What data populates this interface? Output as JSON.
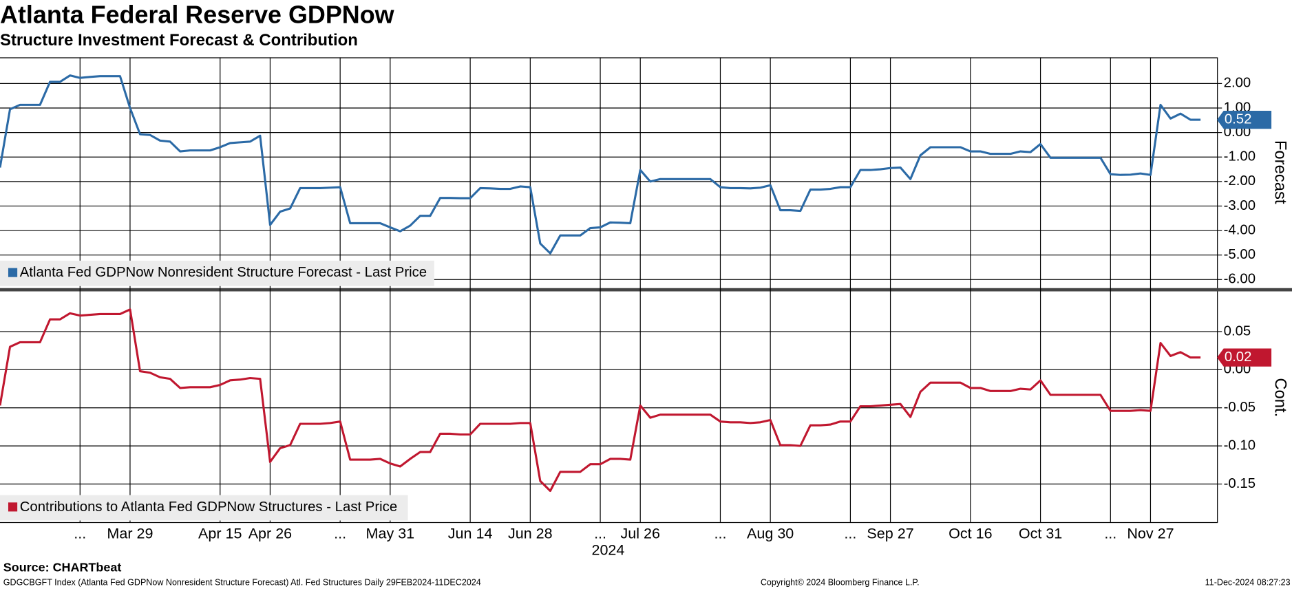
{
  "chart_data": [
    {
      "type": "line",
      "title": "Atlanta Federal Reserve GDPNow",
      "subtitle": "Structure Investment Forecast & Contribution",
      "ylabel": "Forecast",
      "ylim": [
        -6.3,
        3
      ],
      "yticks": [
        {
          "value": 2,
          "label": "2.00"
        },
        {
          "value": 1,
          "label": "1.00"
        },
        {
          "value": 0,
          "label": "0.00"
        },
        {
          "value": -1,
          "label": "-1.00"
        },
        {
          "value": -2,
          "label": "-2.00"
        },
        {
          "value": -3,
          "label": "-3.00"
        },
        {
          "value": -4,
          "label": "-4.00"
        },
        {
          "value": -5,
          "label": "-5.00"
        },
        {
          "value": -6,
          "label": "-6.00"
        }
      ],
      "grid": true,
      "series": [
        {
          "name": "Atlanta Fed GDPNow Nonresident Structure Forecast - Last Price",
          "color": "#2b6aa6",
          "values": [
            -1.43,
            0.95,
            1.13,
            1.13,
            1.13,
            2.07,
            2.07,
            2.33,
            2.23,
            2.27,
            2.3,
            2.3,
            2.3,
            1.0,
            -0.07,
            -0.1,
            -0.33,
            -0.37,
            -0.77,
            -0.73,
            -0.73,
            -0.73,
            -0.6,
            -0.43,
            -0.4,
            -0.37,
            -0.13,
            -3.77,
            -3.23,
            -3.1,
            -2.27,
            -2.27,
            -2.27,
            -2.25,
            -2.23,
            -3.7,
            -3.7,
            -3.7,
            -3.7,
            -3.87,
            -4.03,
            -3.8,
            -3.4,
            -3.4,
            -2.67,
            -2.67,
            -2.68,
            -2.68,
            -2.27,
            -2.28,
            -2.3,
            -2.3,
            -2.2,
            -2.23,
            -4.53,
            -4.93,
            -4.2,
            -4.2,
            -4.2,
            -3.9,
            -3.87,
            -3.67,
            -3.68,
            -3.7,
            -1.53,
            -2.0,
            -1.9,
            -1.9,
            -1.9,
            -1.9,
            -1.9,
            -1.9,
            -2.23,
            -2.27,
            -2.27,
            -2.28,
            -2.25,
            -2.15,
            -3.17,
            -3.17,
            -3.2,
            -2.33,
            -2.33,
            -2.3,
            -2.23,
            -2.23,
            -1.53,
            -1.53,
            -1.5,
            -1.45,
            -1.43,
            -1.9,
            -0.93,
            -0.6,
            -0.6,
            -0.6,
            -0.6,
            -0.77,
            -0.77,
            -0.87,
            -0.87,
            -0.87,
            -0.77,
            -0.8,
            -0.47,
            -1.03,
            -1.03,
            -1.03,
            -1.03,
            -1.03,
            -1.03,
            -1.7,
            -1.73,
            -1.72,
            -1.67,
            -1.73,
            1.13,
            0.57,
            0.77,
            0.52,
            0.52
          ]
        }
      ]
    },
    {
      "type": "line",
      "categories": [
        null,
        null,
        null,
        null,
        null,
        null,
        null,
        null,
        "...",
        null,
        null,
        null,
        null,
        "Mar 29",
        null,
        null,
        null,
        null,
        null,
        null,
        null,
        null,
        "Apr 15",
        null,
        null,
        null,
        null,
        "Apr 26",
        null,
        null,
        null,
        null,
        null,
        null,
        "...",
        null,
        null,
        null,
        null,
        "May 31",
        null,
        null,
        null,
        null,
        null,
        null,
        null,
        "Jun 14",
        null,
        null,
        null,
        null,
        null,
        "Jun 28",
        null,
        null,
        null,
        null,
        null,
        null,
        "...",
        null,
        null,
        null,
        "Jul 26",
        null,
        null,
        null,
        null,
        null,
        null,
        null,
        "...",
        null,
        null,
        null,
        null,
        "Aug 30",
        null,
        null,
        null,
        null,
        null,
        null,
        null,
        "...",
        null,
        null,
        null,
        "Sep 27",
        null,
        null,
        null,
        null,
        null,
        null,
        null,
        "Oct 16",
        null,
        null,
        null,
        null,
        null,
        null,
        "Oct 31",
        null,
        null,
        null,
        null,
        null,
        null,
        "...",
        null,
        null,
        null,
        "Nov 27",
        null,
        null,
        null,
        null,
        null
      ],
      "xlabel": "2024",
      "ylabel": "Cont.",
      "ylim": [
        -0.2,
        0.1
      ],
      "yticks": [
        {
          "value": 0.05,
          "label": "0.05"
        },
        {
          "value": 0,
          "label": "0.00"
        },
        {
          "value": -0.05,
          "label": "-0.05"
        },
        {
          "value": -0.1,
          "label": "-0.10"
        },
        {
          "value": -0.15,
          "label": "-0.15"
        }
      ],
      "grid": true,
      "series": [
        {
          "name": "Contributions to Atlanta Fed GDPNow Structures - Last Price",
          "color": "#c0172f",
          "values": [
            -0.047,
            0.03,
            0.036,
            0.036,
            0.036,
            0.066,
            0.066,
            0.074,
            0.071,
            0.072,
            0.073,
            0.073,
            0.073,
            0.079,
            -0.002,
            -0.004,
            -0.01,
            -0.012,
            -0.024,
            -0.023,
            -0.023,
            -0.023,
            -0.02,
            -0.014,
            -0.013,
            -0.011,
            -0.012,
            -0.121,
            -0.103,
            -0.099,
            -0.071,
            -0.071,
            -0.071,
            -0.07,
            -0.068,
            -0.118,
            -0.118,
            -0.118,
            -0.117,
            -0.123,
            -0.127,
            -0.117,
            -0.108,
            -0.108,
            -0.084,
            -0.084,
            -0.085,
            -0.085,
            -0.071,
            -0.071,
            -0.071,
            -0.071,
            -0.07,
            -0.07,
            -0.146,
            -0.159,
            -0.134,
            -0.134,
            -0.134,
            -0.124,
            -0.124,
            -0.117,
            -0.117,
            -0.118,
            -0.047,
            -0.063,
            -0.059,
            -0.059,
            -0.059,
            -0.059,
            -0.059,
            -0.059,
            -0.068,
            -0.069,
            -0.069,
            -0.07,
            -0.069,
            -0.066,
            -0.099,
            -0.099,
            -0.1,
            -0.073,
            -0.073,
            -0.072,
            -0.068,
            -0.068,
            -0.048,
            -0.048,
            -0.047,
            -0.046,
            -0.045,
            -0.062,
            -0.029,
            -0.017,
            -0.017,
            -0.017,
            -0.017,
            -0.024,
            -0.024,
            -0.028,
            -0.028,
            -0.028,
            -0.025,
            -0.026,
            -0.014,
            -0.033,
            -0.033,
            -0.033,
            -0.033,
            -0.033,
            -0.033,
            -0.054,
            -0.054,
            -0.054,
            -0.053,
            -0.054,
            0.035,
            0.018,
            0.023,
            0.016,
            0.016
          ],
          "value_labels": [
            null,
            null,
            null,
            null,
            null,
            null,
            null,
            null,
            null,
            null,
            null,
            null,
            null,
            null,
            null,
            null,
            null,
            null,
            null,
            null,
            null,
            null,
            null,
            null,
            null,
            null,
            null,
            null,
            null,
            null,
            null,
            null,
            null,
            null,
            null,
            null,
            null,
            null,
            null,
            null,
            null,
            null,
            null,
            null,
            null,
            null,
            null,
            null,
            null,
            null,
            null,
            null,
            null,
            null,
            null,
            null,
            null,
            null,
            null,
            null,
            null,
            null,
            null,
            null,
            null,
            null,
            null,
            null,
            null,
            null,
            null,
            null,
            null,
            null,
            null,
            null,
            null,
            null,
            null,
            null,
            null,
            null,
            null,
            null,
            null,
            null,
            null,
            null,
            null,
            null,
            null,
            null,
            null,
            null,
            null,
            null,
            null,
            null,
            null,
            null,
            null,
            null,
            null,
            null,
            null,
            null,
            null,
            null,
            null,
            null,
            null,
            null,
            null,
            null,
            null,
            null,
            null,
            null,
            null,
            null,
            "0.02"
          ]
        }
      ]
    }
  ],
  "footer": {
    "source": "Source: CHARTbeat",
    "description": "GDGCBGFT Index (Atlanta Fed GDPNow Nonresident Structure Forecast) Atl. Fed Structures  Daily 29FEB2024-11DEC2024",
    "copyright": "Copyright© 2024 Bloomberg Finance L.P.",
    "timestamp": "11-Dec-2024 08:27:23"
  }
}
